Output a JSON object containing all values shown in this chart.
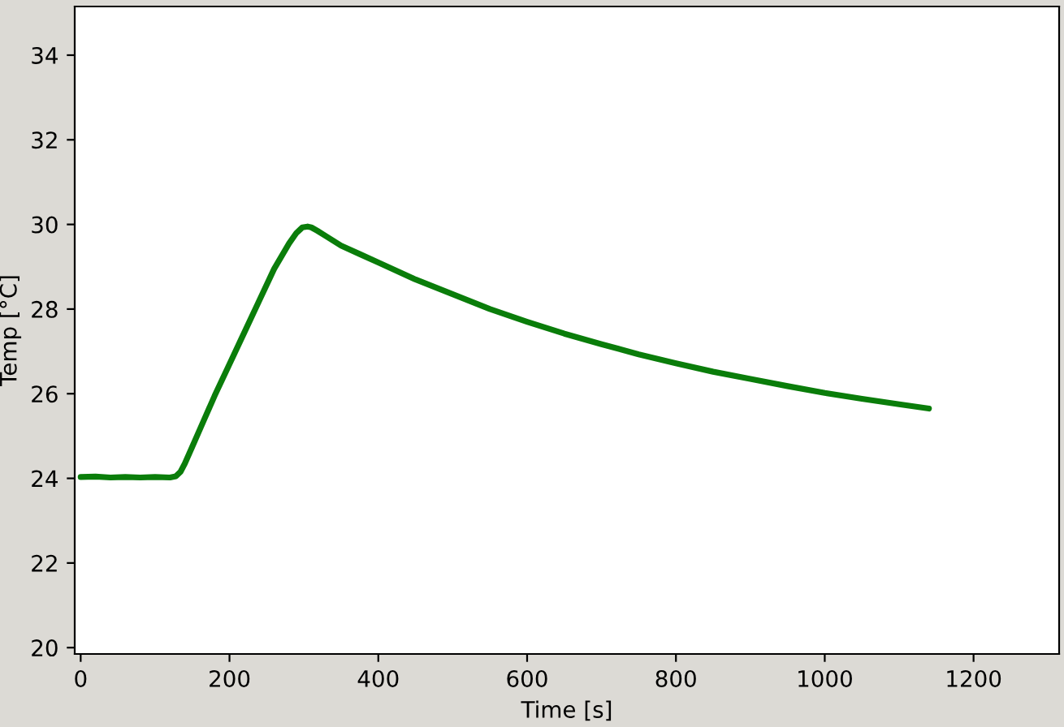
{
  "chart_data": {
    "type": "line",
    "xlabel": "Time [s]",
    "ylabel": "Temp [°C]",
    "xlim": [
      -8,
      1315
    ],
    "ylim": [
      19.85,
      35.15
    ],
    "xticks": [
      0,
      200,
      400,
      600,
      800,
      1000,
      1200
    ],
    "yticks": [
      20,
      22,
      24,
      26,
      28,
      30,
      32,
      34
    ],
    "grid": false,
    "legend": false,
    "marker": "none",
    "line_style": "solid",
    "series": [
      {
        "color": "#0a7d0a",
        "x": [
          0,
          20,
          40,
          60,
          80,
          100,
          120,
          128,
          134,
          140,
          150,
          165,
          180,
          200,
          220,
          240,
          260,
          280,
          290,
          298,
          305,
          310,
          318,
          330,
          350,
          375,
          400,
          450,
          500,
          550,
          600,
          650,
          700,
          750,
          800,
          850,
          900,
          950,
          1000,
          1050,
          1100,
          1140
        ],
        "values": [
          24.03,
          24.04,
          24.02,
          24.03,
          24.02,
          24.03,
          24.02,
          24.05,
          24.15,
          24.35,
          24.75,
          25.35,
          25.95,
          26.7,
          27.45,
          28.2,
          28.95,
          29.55,
          29.8,
          29.93,
          29.95,
          29.93,
          29.85,
          29.72,
          29.5,
          29.3,
          29.1,
          28.7,
          28.35,
          28.0,
          27.7,
          27.42,
          27.17,
          26.93,
          26.72,
          26.52,
          26.35,
          26.18,
          26.02,
          25.88,
          25.75,
          25.65
        ]
      }
    ]
  }
}
